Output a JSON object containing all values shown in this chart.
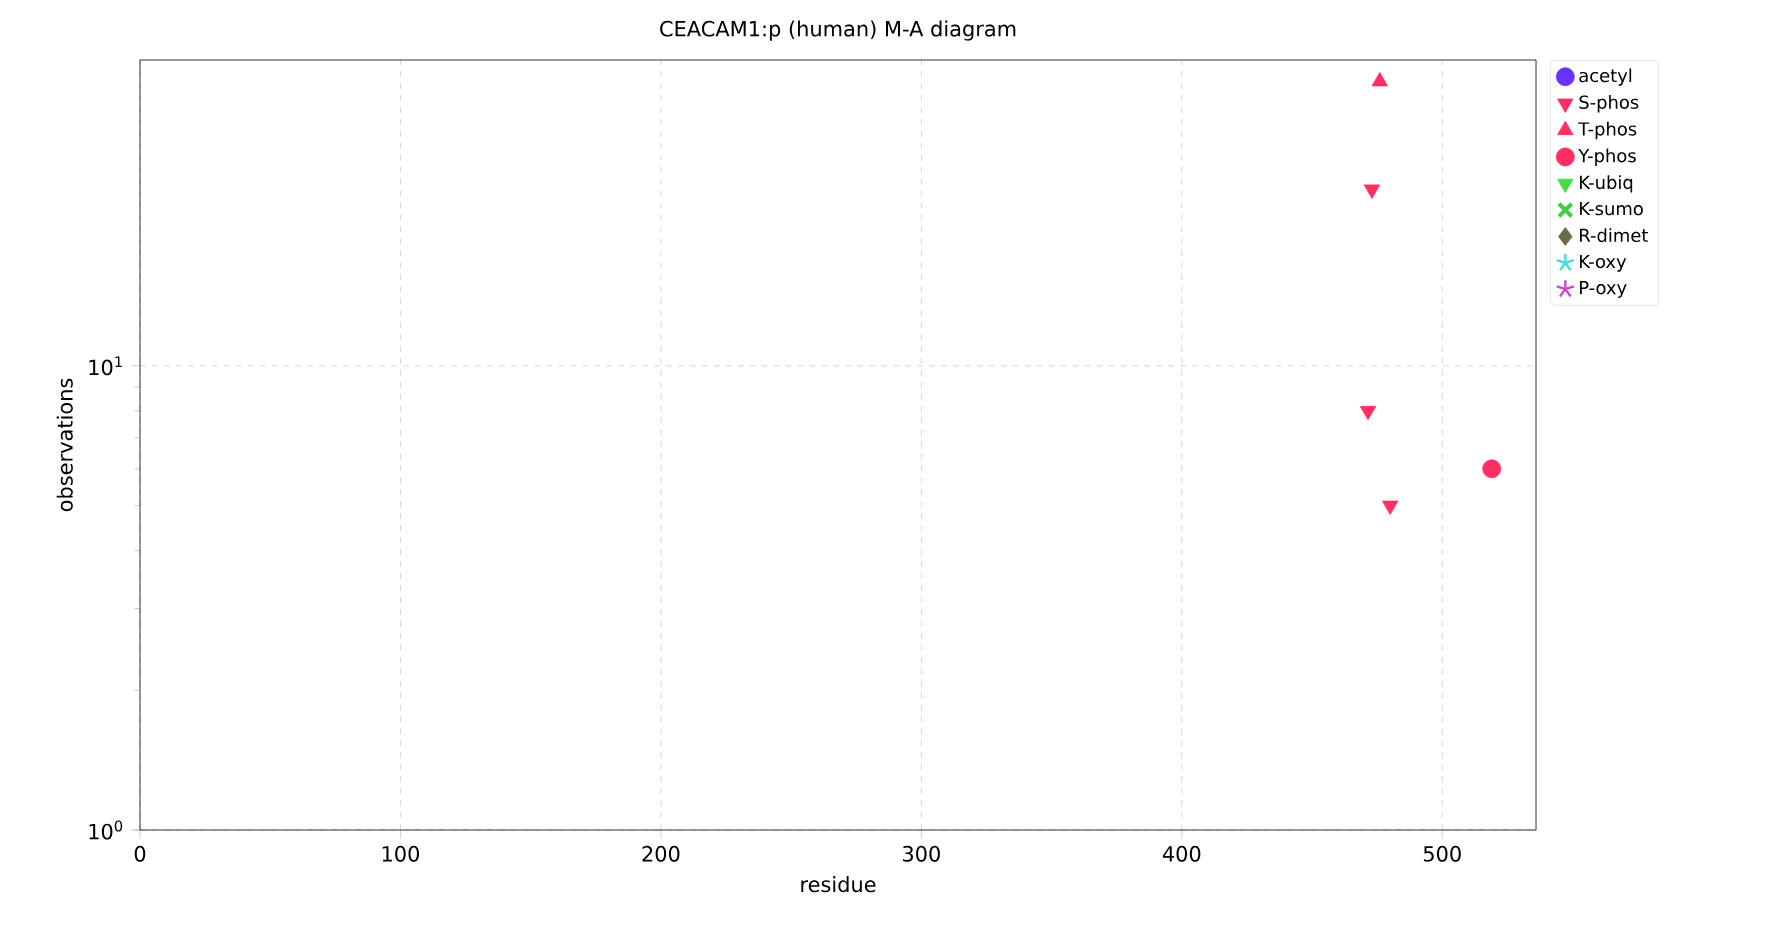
{
  "chart_data": {
    "type": "scatter",
    "title": "CEACAM1:p (human) M-A diagram",
    "xlabel": "residue",
    "ylabel": "observations",
    "log": "y",
    "grid": true,
    "legend": "top right",
    "xlim": [
      0,
      536
    ],
    "xticks": [
      0,
      100,
      200,
      300,
      400,
      500
    ],
    "ylim": [
      1,
      45.6
    ],
    "yticks": [
      {
        "value": 1,
        "label": "10$^{0}$"
      },
      {
        "value": 10,
        "label": "10$^{1}$"
      }
    ],
    "series": [
      {
        "name": "acetyl",
        "color": "#6633ff",
        "marker": "circle"
      },
      {
        "name": "S-phos",
        "color": "#ff2e63",
        "marker": "triangle_down",
        "x": [
          473,
          471.5,
          480
        ],
        "values": [
          24,
          8,
          5
        ]
      },
      {
        "name": "T-phos",
        "color": "#ff2e63",
        "marker": "triangle",
        "x": [
          476
        ],
        "values": [
          41
        ]
      },
      {
        "name": "Y-phos",
        "color": "#ff2e63",
        "marker": "circle",
        "x": [
          519
        ],
        "values": [
          6
        ]
      },
      {
        "name": "K-ubiq",
        "color": "#44dd44",
        "marker": "triangle_down"
      },
      {
        "name": "K-sumo",
        "color": "#44cc44",
        "marker": "cross"
      },
      {
        "name": "R-dimet",
        "color": "#6b6b45",
        "marker": "diamond"
      },
      {
        "name": "K-oxy",
        "color": "#44dddd",
        "marker": "star"
      },
      {
        "name": "P-oxy",
        "color": "#cc44cc",
        "marker": "star"
      }
    ]
  }
}
